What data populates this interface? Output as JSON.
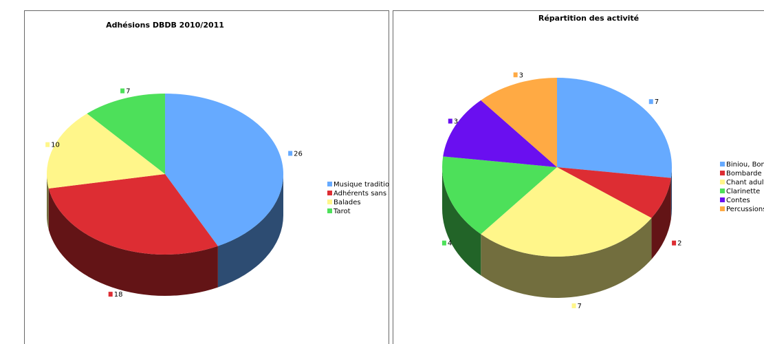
{
  "chart_data": [
    {
      "type": "pie3d",
      "title": "Adhésions DBDB 2010/2011",
      "categories": [
        "Musique tradition",
        "Adhérents sans a",
        "Balades",
        "Tarot"
      ],
      "values": [
        26,
        18,
        10,
        7
      ],
      "colors": [
        "#66aaff",
        "#dd2d33",
        "#fff68a",
        "#4de05a"
      ]
    },
    {
      "type": "pie3d",
      "title": "Répartition des activité",
      "categories": [
        "Biniou, Bon",
        "Bombarde",
        "Chant adult",
        "Clarinette",
        "Contes",
        "Percussions"
      ],
      "values": [
        7,
        2,
        7,
        4,
        3,
        3
      ],
      "colors": [
        "#66aaff",
        "#dd2d33",
        "#fff68a",
        "#4de05a",
        "#6a0ff0",
        "#ffaa44"
      ]
    }
  ]
}
